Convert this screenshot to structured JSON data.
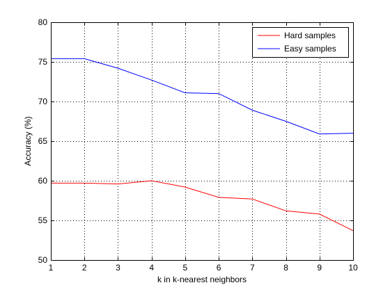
{
  "chart_data": {
    "type": "line",
    "title": "",
    "xlabel": "k in k-nearest neighbors",
    "ylabel": "Accuracy (%)",
    "x": [
      1,
      2,
      3,
      4,
      5,
      6,
      7,
      8,
      9,
      10
    ],
    "xlim": [
      1,
      10
    ],
    "ylim": [
      50,
      80
    ],
    "xticks": [
      1,
      2,
      3,
      4,
      5,
      6,
      7,
      8,
      9,
      10
    ],
    "yticks": [
      50,
      55,
      60,
      65,
      70,
      75,
      80
    ],
    "grid": true,
    "legend_position": "top-right",
    "series": [
      {
        "name": "Hard samples",
        "color": "#ff0000",
        "values": [
          59.7,
          59.7,
          59.6,
          60.0,
          59.2,
          57.9,
          57.7,
          56.2,
          55.8,
          53.7
        ]
      },
      {
        "name": "Easy samples",
        "color": "#0000ff",
        "values": [
          75.4,
          75.4,
          74.2,
          72.7,
          71.1,
          71.0,
          68.9,
          67.5,
          65.9,
          66.0
        ]
      }
    ]
  }
}
